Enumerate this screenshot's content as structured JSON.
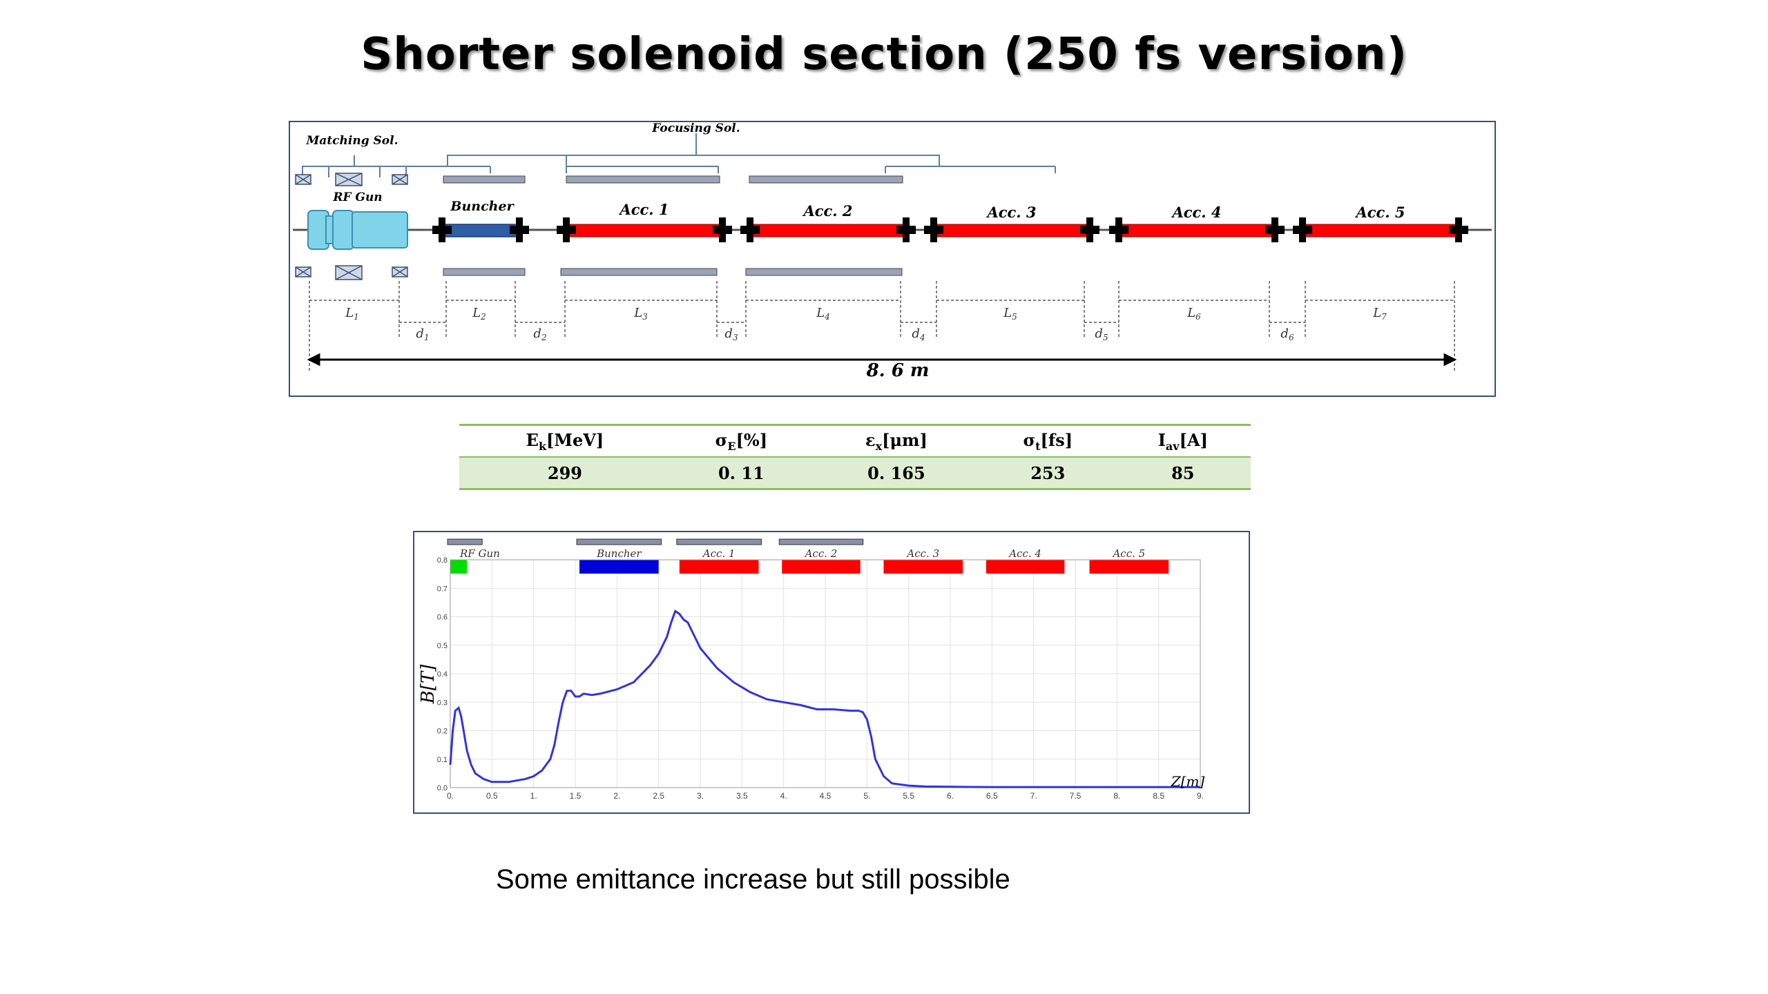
{
  "slide": {
    "title": "Shorter solenoid section (250 fs version)",
    "caption": "Some emittance increase but still possible"
  },
  "diagram": {
    "matching_label": "Matching Sol.",
    "focusing_label": "Focusing Sol.",
    "gun_label": "RF Gun",
    "buncher_label": "Buncher",
    "acc_labels": [
      "Acc. 1",
      "Acc. 2",
      "Acc. 3",
      "Acc. 4",
      "Acc. 5"
    ],
    "length_labels": [
      "L",
      "L",
      "L",
      "L",
      "L",
      "L",
      "L"
    ],
    "length_subs": [
      "1",
      "2",
      "3",
      "4",
      "5",
      "6",
      "7"
    ],
    "drift_labels": [
      "d",
      "d",
      "d",
      "d",
      "d",
      "d"
    ],
    "drift_subs": [
      "1",
      "2",
      "3",
      "4",
      "5",
      "6"
    ],
    "total_length": "8. 6 m",
    "colors": {
      "gun": "#7fd4ea",
      "buncher": "#2f5ea8",
      "acc": "#ff0000"
    }
  },
  "table": {
    "headers": [
      {
        "base": "E",
        "sub": "k",
        "unit": "[MeV]"
      },
      {
        "base": "σ",
        "sub": "E",
        "unit": "[%]"
      },
      {
        "base": "ε",
        "sub": "x",
        "unit": "[μm]"
      },
      {
        "base": "σ",
        "sub": "t",
        "unit": "[fs]"
      },
      {
        "base": "I",
        "sub": "av",
        "unit": "[A]"
      }
    ],
    "values": [
      "299",
      "0. 11",
      "0. 165",
      "253",
      "85"
    ]
  },
  "chart_data": {
    "type": "line",
    "xlabel": "Z[m]",
    "ylabel": "B[T]",
    "xlim": [
      0,
      9
    ],
    "ylim": [
      0,
      0.8
    ],
    "x_ticks": [
      "0.",
      "0.5",
      "1.",
      "1.5",
      "2.",
      "2.5",
      "3.",
      "3.5",
      "4.",
      "4.5",
      "5.",
      "5.5",
      "6.",
      "6.5",
      "7.",
      "7.5",
      "8.",
      "8.5",
      "9."
    ],
    "y_ticks": [
      "0.0",
      "0.1",
      "0.2",
      "0.3",
      "0.4",
      "0.5",
      "0.6",
      "0.7",
      "0.8"
    ],
    "grid": true,
    "line_color": "#3333dd",
    "series": [
      {
        "x": [
          0,
          0.03,
          0.06,
          0.1,
          0.13,
          0.16,
          0.2,
          0.25,
          0.3,
          0.4,
          0.5,
          0.6,
          0.7,
          0.8,
          0.9,
          1.0,
          1.1,
          1.2,
          1.25,
          1.3,
          1.35,
          1.4,
          1.45,
          1.5,
          1.55,
          1.6,
          1.7,
          1.8,
          2.0,
          2.2,
          2.4,
          2.5,
          2.6,
          2.65,
          2.7,
          2.75,
          2.8,
          2.85,
          2.9,
          3.0,
          3.2,
          3.4,
          3.6,
          3.8,
          4.0,
          4.2,
          4.4,
          4.6,
          4.8,
          4.9,
          4.95,
          5.0,
          5.05,
          5.1,
          5.2,
          5.3,
          5.5,
          5.7,
          6.0,
          6.5,
          7.0,
          8.0,
          9.0
        ],
        "y": [
          0.08,
          0.2,
          0.27,
          0.28,
          0.25,
          0.2,
          0.13,
          0.08,
          0.05,
          0.03,
          0.02,
          0.02,
          0.02,
          0.025,
          0.03,
          0.04,
          0.06,
          0.1,
          0.15,
          0.23,
          0.3,
          0.34,
          0.34,
          0.32,
          0.32,
          0.33,
          0.325,
          0.33,
          0.345,
          0.37,
          0.43,
          0.47,
          0.53,
          0.58,
          0.62,
          0.61,
          0.59,
          0.58,
          0.55,
          0.49,
          0.42,
          0.37,
          0.335,
          0.31,
          0.3,
          0.29,
          0.275,
          0.275,
          0.27,
          0.27,
          0.265,
          0.24,
          0.18,
          0.1,
          0.04,
          0.015,
          0.007,
          0.004,
          0.003,
          0.002,
          0.002,
          0.002,
          0.002
        ]
      }
    ],
    "element_labels": [
      "RF Gun",
      "Buncher",
      "Acc. 1",
      "Acc. 2",
      "Acc. 3",
      "Acc. 4",
      "Acc. 5"
    ],
    "element_colors": [
      "#00dd00",
      "#0000dd",
      "#ff0000",
      "#ff0000",
      "#ff0000",
      "#ff0000",
      "#ff0000"
    ]
  }
}
